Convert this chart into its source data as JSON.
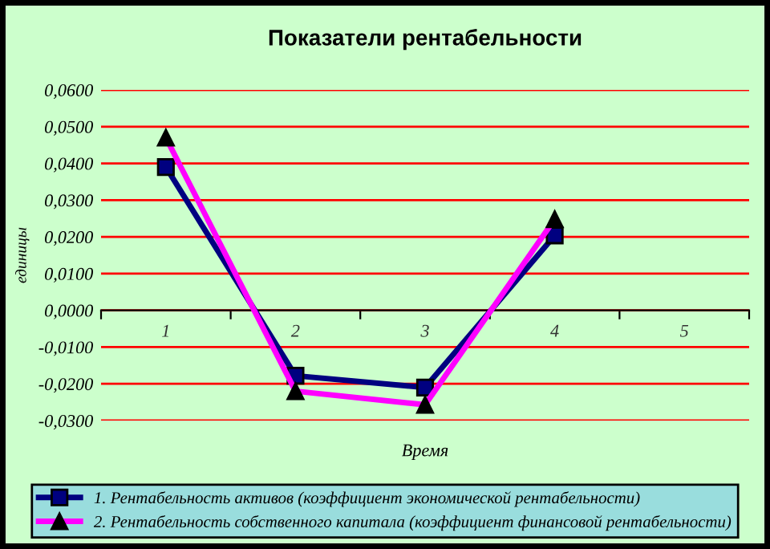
{
  "chart_data": {
    "type": "line",
    "title": "Показатели рентабельности",
    "xlabel": "Время",
    "ylabel": "единицы",
    "categories": [
      "1",
      "2",
      "3",
      "4",
      "5"
    ],
    "series": [
      {
        "name": "1. Рентабельность активов (коэффициент экономической рентабельности)",
        "color": "#000080",
        "values": [
          0.039,
          -0.0178,
          -0.021,
          0.0204,
          null
        ],
        "marker": "square"
      },
      {
        "name": "2. Рентабельность собственного капитала (коэффициент финансовой рентабельности)",
        "color": "#ff00ff",
        "values": [
          0.047,
          -0.022,
          -0.0257,
          0.0248,
          null
        ],
        "marker": "triangle"
      }
    ],
    "ylim": [
      -0.03,
      0.06
    ],
    "yticks": [
      {
        "value": -0.03,
        "label": "-0,0300"
      },
      {
        "value": -0.02,
        "label": "-0,0200"
      },
      {
        "value": -0.01,
        "label": "-0,0100"
      },
      {
        "value": 0,
        "label": "0,0000"
      },
      {
        "value": 0.01,
        "label": "0,0100"
      },
      {
        "value": 0.02,
        "label": "0,0200"
      },
      {
        "value": 0.03,
        "label": "0,0300"
      },
      {
        "value": 0.04,
        "label": "0,0400"
      },
      {
        "value": 0.05,
        "label": "0,0500"
      },
      {
        "value": 0.06,
        "label": "0,0600"
      }
    ],
    "grid": "y",
    "legend": "bottom",
    "line_style": "solid"
  }
}
